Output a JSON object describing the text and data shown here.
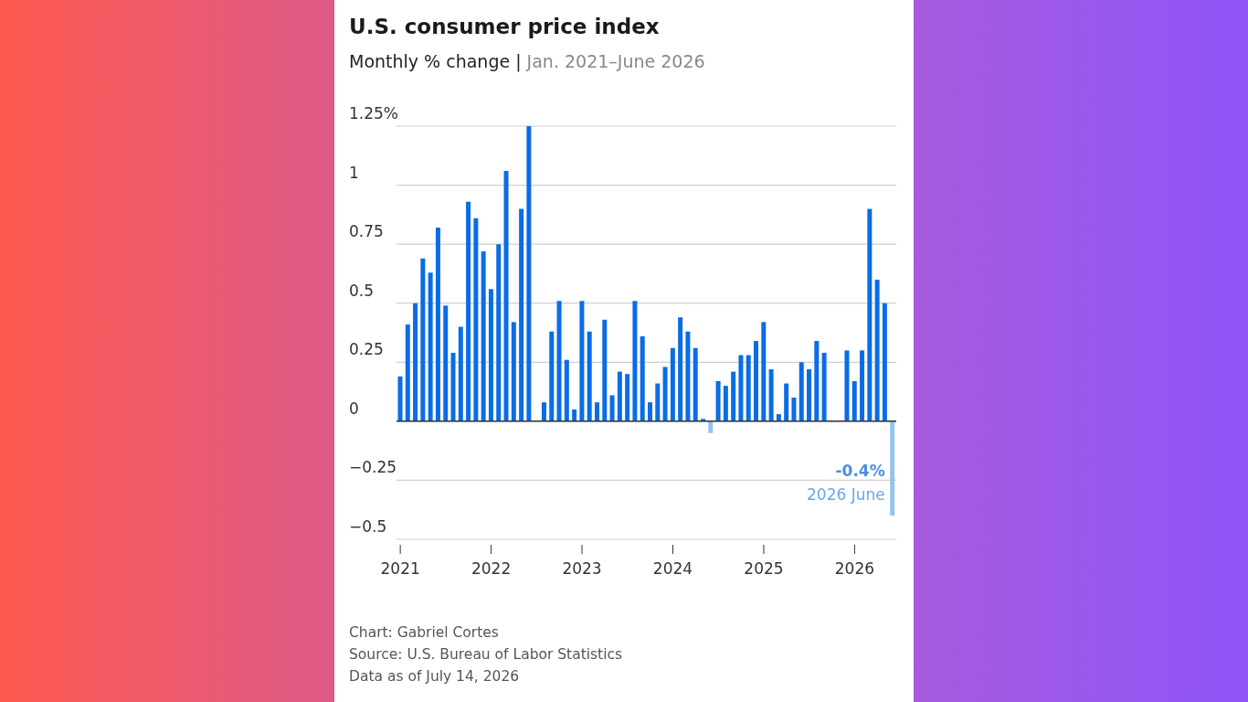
{
  "chart_data": {
    "type": "bar",
    "title": "U.S. consumer price index",
    "subtitle": "Monthly % change | Jan. 2021–June 2026",
    "categories": [
      "2021",
      null,
      null,
      null,
      null,
      null,
      null,
      null,
      null,
      null,
      null,
      null,
      "2022",
      null,
      null,
      null,
      null,
      null,
      null,
      null,
      null,
      null,
      null,
      null,
      "2023",
      null,
      null,
      null,
      null,
      null,
      null,
      null,
      null,
      null,
      null,
      null,
      "2024",
      null,
      null,
      null,
      null,
      null,
      null,
      null,
      null,
      null,
      null,
      null,
      "2025",
      null,
      null,
      null,
      null,
      null,
      null,
      null,
      null,
      null,
      null,
      null,
      "2026",
      null,
      null,
      null,
      null,
      null
    ],
    "values": [
      0.19,
      0.41,
      0.5,
      0.69,
      0.63,
      0.82,
      0.49,
      0.29,
      0.4,
      0.93,
      0.86,
      0.72,
      0.56,
      0.75,
      1.06,
      0.42,
      0.9,
      1.25,
      0,
      0.08,
      0.38,
      0.51,
      0.26,
      0.05,
      0.51,
      0.38,
      0.08,
      0.43,
      0.11,
      0.21,
      0.2,
      0.51,
      0.36,
      0.08,
      0.16,
      0.23,
      0.31,
      0.44,
      0.38,
      0.31,
      0.01,
      -0.05,
      0.17,
      0.15,
      0.21,
      0.28,
      0.28,
      0.34,
      0.42,
      0.22,
      0.03,
      0.16,
      0.1,
      0.25,
      0.22,
      0.34,
      0.29,
      null,
      null,
      0.3,
      0.17,
      0.3,
      0.9,
      0.6,
      0.5,
      -0.4
    ],
    "colors": [
      "#0a6ce6",
      "#0a6ce6",
      "#0a6ce6",
      "#0a6ce6",
      "#0a6ce6",
      "#0a6ce6",
      "#0a6ce6",
      "#0a6ce6",
      "#0a6ce6",
      "#0a6ce6",
      "#0a6ce6",
      "#0a6ce6",
      "#0a6ce6",
      "#0a6ce6",
      "#0a6ce6",
      "#0a6ce6",
      "#0a6ce6",
      "#0a6ce6",
      "#0a6ce6",
      "#0a6ce6",
      "#0a6ce6",
      "#0a6ce6",
      "#0a6ce6",
      "#0a6ce6",
      "#0a6ce6",
      "#0a6ce6",
      "#0a6ce6",
      "#0a6ce6",
      "#0a6ce6",
      "#0a6ce6",
      "#0a6ce6",
      "#0a6ce6",
      "#0a6ce6",
      "#0a6ce6",
      "#0a6ce6",
      "#0a6ce6",
      "#0a6ce6",
      "#0a6ce6",
      "#0a6ce6",
      "#0a6ce6",
      "#0a6ce6",
      "#93c3f3",
      "#0a6ce6",
      "#0a6ce6",
      "#0a6ce6",
      "#0a6ce6",
      "#0a6ce6",
      "#0a6ce6",
      "#0a6ce6",
      "#0a6ce6",
      "#0a6ce6",
      "#0a6ce6",
      "#0a6ce6",
      "#0a6ce6",
      "#0a6ce6",
      "#0a6ce6",
      "#0a6ce6",
      "#0a6ce6",
      "#0a6ce6",
      "#0a6ce6",
      "#0a6ce6",
      "#0a6ce6",
      "#0a6ce6",
      "#0a6ce6",
      "#0a6ce6",
      "#93c3f3"
    ],
    "ylim": [
      -0.5,
      1.25
    ],
    "yticks": [
      {
        "value": -0.5,
        "label": "−0.5"
      },
      {
        "value": -0.25,
        "label": "−0.25"
      },
      0,
      0.25,
      0.5,
      0.75,
      1,
      {
        "value": 1.25,
        "label": "1.25%"
      }
    ],
    "grid": "y",
    "annotations": [
      "-0.4%",
      "2026 June",
      "Chart: Gabriel Cortes",
      "Source: U.S. Bureau of Labor Statistics",
      "Data as of July 14, 2026"
    ]
  }
}
